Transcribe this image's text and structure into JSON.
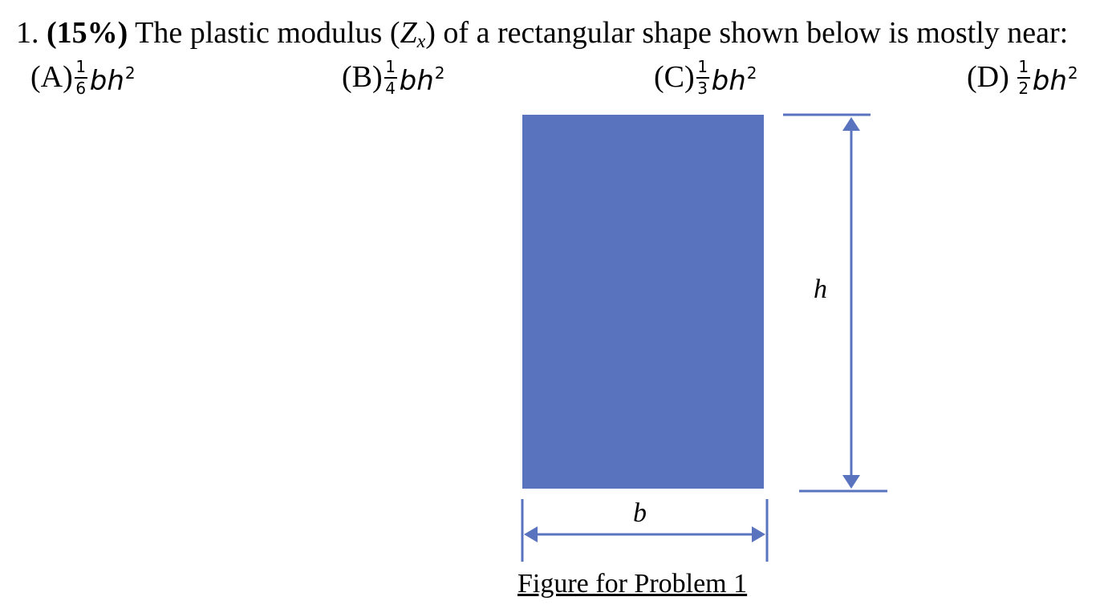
{
  "question": {
    "number": "1.",
    "open_paren": "(",
    "weight": "15%",
    "close_paren": ")",
    "text_before": "The plastic modulus (",
    "symbol": "Z",
    "subscript": "x",
    "text_after": ") of a rectangular shape shown below is mostly near:"
  },
  "choices": [
    {
      "letter": "(A)",
      "numerator": "1",
      "denominator": "6",
      "expression": "bh",
      "power": "2"
    },
    {
      "letter": "(B)",
      "numerator": "1",
      "denominator": "4",
      "expression": "bh",
      "power": "2"
    },
    {
      "letter": "(C)",
      "numerator": "1",
      "denominator": "3",
      "expression": "bh",
      "power": "2"
    },
    {
      "letter": "(D)",
      "numerator": "1",
      "denominator": "2",
      "expression": "bh",
      "power": "2"
    }
  ],
  "figure": {
    "fill_color": "#5a73bf",
    "dimension_color": "#5a73bf",
    "height_label": "h",
    "width_label": "b",
    "caption": "Figure for Problem 1"
  }
}
